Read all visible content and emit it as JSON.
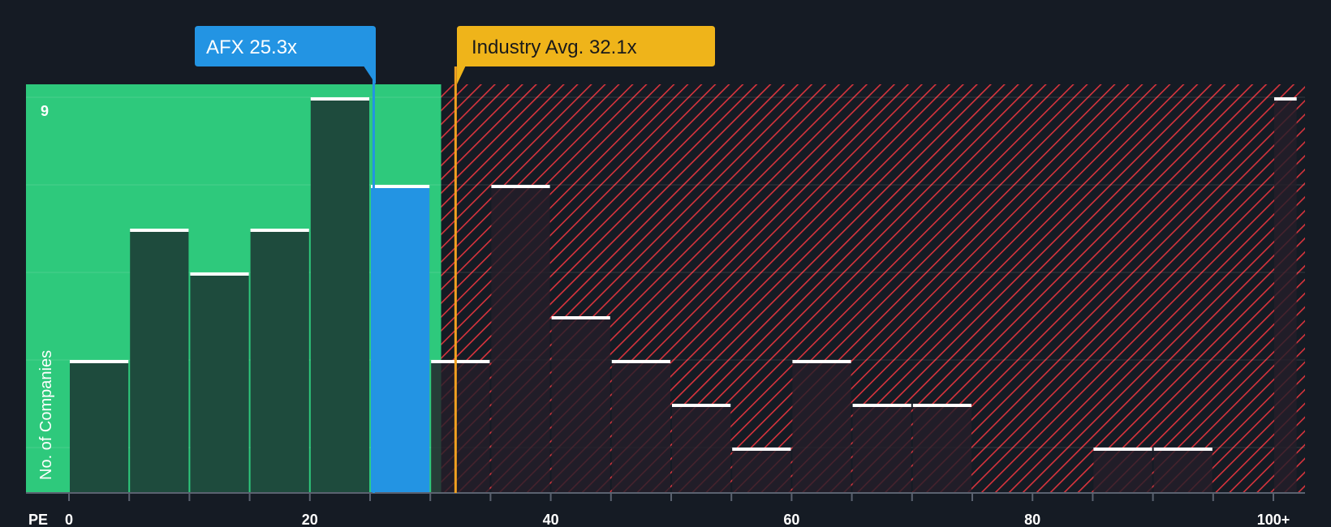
{
  "chart_data": {
    "type": "bar",
    "xlabel": "PE",
    "ylabel": "No. of Companies",
    "ymax_label": "9",
    "ylim": [
      0,
      9
    ],
    "xlim": [
      0,
      102
    ],
    "bin_width": 5,
    "x_ticks": [
      {
        "value": 0,
        "label": "0"
      },
      {
        "value": 20,
        "label": "20"
      },
      {
        "value": 40,
        "label": "40"
      },
      {
        "value": 60,
        "label": "60"
      },
      {
        "value": 80,
        "label": "80"
      },
      {
        "value": 100,
        "label": "100+"
      }
    ],
    "bins": [
      {
        "start": 0,
        "end": 5,
        "count": 3
      },
      {
        "start": 5,
        "end": 10,
        "count": 6
      },
      {
        "start": 10,
        "end": 15,
        "count": 5
      },
      {
        "start": 15,
        "end": 20,
        "count": 6
      },
      {
        "start": 20,
        "end": 25,
        "count": 9
      },
      {
        "start": 25,
        "end": 30,
        "count": 7,
        "highlight": true
      },
      {
        "start": 30,
        "end": 35,
        "count": 3
      },
      {
        "start": 35,
        "end": 40,
        "count": 7
      },
      {
        "start": 40,
        "end": 45,
        "count": 4
      },
      {
        "start": 45,
        "end": 50,
        "count": 3
      },
      {
        "start": 50,
        "end": 55,
        "count": 2
      },
      {
        "start": 55,
        "end": 60,
        "count": 1
      },
      {
        "start": 60,
        "end": 65,
        "count": 3
      },
      {
        "start": 65,
        "end": 70,
        "count": 2
      },
      {
        "start": 70,
        "end": 75,
        "count": 2
      },
      {
        "start": 75,
        "end": 80,
        "count": 0
      },
      {
        "start": 80,
        "end": 85,
        "count": 0
      },
      {
        "start": 85,
        "end": 90,
        "count": 1
      },
      {
        "start": 90,
        "end": 95,
        "count": 1
      },
      {
        "start": 95,
        "end": 100,
        "count": 0
      },
      {
        "start": 100,
        "end": 102,
        "count": 9
      }
    ],
    "company": {
      "label": "AFX 25.3x",
      "value": 25.3
    },
    "industry": {
      "label": "Industry Avg. 32.1x",
      "value": 32.1
    },
    "green_zone_max": 30.9
  },
  "colors": {
    "background": "#151b24",
    "green_zone": "#2ec97c",
    "green_bar": "#1e4b3d",
    "highlight_bar": "#2394e3",
    "red_hatch": "#d8343d",
    "red_bar": "#251f29",
    "industry_line": "#f0a020",
    "company_callout": "#2394e3",
    "industry_callout": "#efb41a",
    "bar_cap": "#ffffff"
  }
}
